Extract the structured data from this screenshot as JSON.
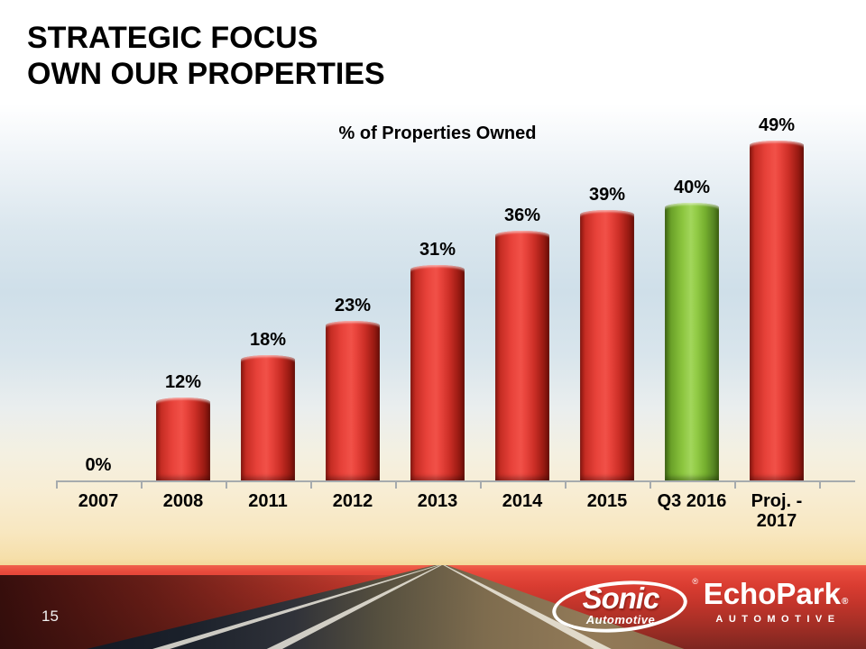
{
  "slide": {
    "title_line1": "STRATEGIC FOCUS",
    "title_line2": "OWN OUR PROPERTIES",
    "page_number": "15"
  },
  "chart_data": {
    "type": "bar",
    "title": "% of Properties Owned",
    "categories": [
      "2007",
      "2008",
      "2011",
      "2012",
      "2013",
      "2014",
      "2015",
      "Q3 2016",
      "Proj. - 2017"
    ],
    "values": [
      0,
      12,
      18,
      23,
      31,
      36,
      39,
      40,
      49
    ],
    "value_labels": [
      "0%",
      "12%",
      "18%",
      "23%",
      "31%",
      "36%",
      "39%",
      "40%",
      "49%"
    ],
    "highlight_index": 7,
    "bar_color_default": "#e8423a",
    "bar_color_highlight": "#8cc63f",
    "ylim": [
      0,
      52
    ],
    "grid": false,
    "legend": "none",
    "value_label_position": "above-bar",
    "xlabel": "",
    "ylabel": ""
  },
  "footer": {
    "sonic": {
      "brand": "Sonic",
      "sub": "Automotive",
      "reg": "®"
    },
    "echopark": {
      "brand": "EchoPark",
      "sub": "AUTOMOTIVE",
      "reg": "®"
    }
  },
  "colors": {
    "title_text": "#000000",
    "axis": "#a6abae",
    "sky_blue": "#cfdfe9",
    "horizon_yellow": "#f2d694",
    "ground_red": "#d93c31",
    "logo_text": "#ffffff"
  }
}
